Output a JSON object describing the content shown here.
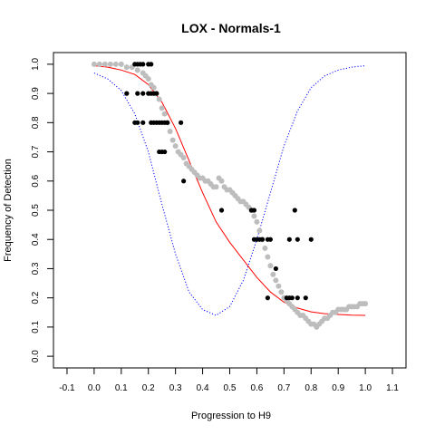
{
  "chart_data": {
    "type": "scatter",
    "title": "LOX - Normals-1",
    "xlabel": "Progression to H9",
    "ylabel": "Frequency of Detection",
    "xlim": [
      -0.15,
      1.15
    ],
    "ylim": [
      -0.04,
      1.04
    ],
    "x_ticks": [
      "-0.1",
      "0.0",
      "0.1",
      "0.2",
      "0.3",
      "0.4",
      "0.5",
      "0.6",
      "0.7",
      "0.8",
      "0.9",
      "1.0",
      "1.1"
    ],
    "y_ticks": [
      "0.0",
      "0.1",
      "0.2",
      "0.3",
      "0.4",
      "0.5",
      "0.6",
      "0.7",
      "0.8",
      "0.9",
      "1.0"
    ],
    "colors": {
      "gray_points": "#bdbdbd",
      "black_points": "#000000",
      "red_curve": "#ff0000",
      "blue_curve": "#0000ff",
      "frame": "#000000"
    },
    "series": [
      {
        "kind": "gray-points",
        "x": [
          0.0,
          0.02,
          0.04,
          0.06,
          0.08,
          0.1,
          0.12,
          0.14,
          0.16,
          0.18,
          0.19,
          0.2,
          0.21,
          0.22,
          0.23,
          0.24,
          0.25,
          0.26,
          0.27,
          0.28,
          0.29,
          0.3,
          0.31,
          0.32,
          0.33,
          0.34,
          0.35,
          0.36,
          0.37,
          0.38,
          0.39,
          0.4,
          0.41,
          0.42,
          0.43,
          0.44,
          0.45,
          0.46,
          0.47,
          0.48,
          0.49,
          0.5,
          0.51,
          0.52,
          0.53,
          0.54,
          0.55,
          0.56,
          0.57,
          0.58,
          0.59,
          0.6,
          0.61,
          0.62,
          0.63,
          0.64,
          0.65,
          0.66,
          0.67,
          0.68,
          0.69,
          0.7,
          0.71,
          0.72,
          0.73,
          0.74,
          0.75,
          0.76,
          0.77,
          0.78,
          0.79,
          0.8,
          0.81,
          0.82,
          0.83,
          0.84,
          0.85,
          0.86,
          0.87,
          0.88,
          0.89,
          0.9,
          0.91,
          0.92,
          0.93,
          0.94,
          0.95,
          0.96,
          0.97,
          0.98,
          0.99,
          1.0
        ],
        "y": [
          1.0,
          1.0,
          1.0,
          1.0,
          1.0,
          1.0,
          0.99,
          0.99,
          0.98,
          0.97,
          0.96,
          0.95,
          0.93,
          0.92,
          0.9,
          0.88,
          0.85,
          0.83,
          0.8,
          0.77,
          0.74,
          0.72,
          0.7,
          0.69,
          0.68,
          0.66,
          0.65,
          0.64,
          0.63,
          0.62,
          0.61,
          0.61,
          0.6,
          0.6,
          0.59,
          0.58,
          0.58,
          0.61,
          0.6,
          0.58,
          0.57,
          0.57,
          0.56,
          0.55,
          0.54,
          0.53,
          0.53,
          0.52,
          0.51,
          0.5,
          0.48,
          0.46,
          0.43,
          0.4,
          0.37,
          0.34,
          0.31,
          0.28,
          0.26,
          0.24,
          0.22,
          0.2,
          0.19,
          0.18,
          0.17,
          0.16,
          0.15,
          0.14,
          0.14,
          0.13,
          0.12,
          0.11,
          0.11,
          0.1,
          0.11,
          0.12,
          0.13,
          0.13,
          0.14,
          0.15,
          0.15,
          0.16,
          0.16,
          0.16,
          0.16,
          0.17,
          0.17,
          0.17,
          0.17,
          0.18,
          0.18,
          0.18
        ]
      },
      {
        "kind": "black-points",
        "x": [
          0.15,
          0.16,
          0.17,
          0.18,
          0.2,
          0.21,
          0.16,
          0.18,
          0.2,
          0.21,
          0.22,
          0.23,
          0.12,
          0.15,
          0.16,
          0.18,
          0.21,
          0.22,
          0.23,
          0.24,
          0.25,
          0.26,
          0.27,
          0.32,
          0.24,
          0.25,
          0.26,
          0.33,
          0.47,
          0.58,
          0.59,
          0.59,
          0.6,
          0.61,
          0.62,
          0.64,
          0.65,
          0.72,
          0.74,
          0.75,
          0.8,
          0.67,
          0.64,
          0.71,
          0.72,
          0.73,
          0.75,
          0.78
        ],
        "y": [
          1.0,
          1.0,
          1.0,
          1.0,
          1.0,
          1.0,
          0.9,
          0.9,
          0.9,
          0.9,
          0.9,
          0.9,
          0.9,
          0.8,
          0.8,
          0.8,
          0.8,
          0.8,
          0.8,
          0.8,
          0.8,
          0.8,
          0.8,
          0.8,
          0.7,
          0.7,
          0.7,
          0.6,
          0.5,
          0.5,
          0.5,
          0.4,
          0.4,
          0.4,
          0.4,
          0.4,
          0.4,
          0.4,
          0.5,
          0.4,
          0.4,
          0.3,
          0.2,
          0.2,
          0.2,
          0.2,
          0.2,
          0.2
        ]
      },
      {
        "kind": "red-fit-curve",
        "x": [
          0.0,
          0.05,
          0.1,
          0.15,
          0.2,
          0.25,
          0.3,
          0.35,
          0.4,
          0.45,
          0.5,
          0.55,
          0.6,
          0.65,
          0.7,
          0.75,
          0.8,
          0.85,
          0.9,
          0.95,
          1.0
        ],
        "y": [
          0.995,
          0.99,
          0.98,
          0.965,
          0.93,
          0.87,
          0.78,
          0.67,
          0.56,
          0.46,
          0.39,
          0.33,
          0.27,
          0.22,
          0.185,
          0.165,
          0.152,
          0.146,
          0.143,
          0.141,
          0.14
        ]
      },
      {
        "kind": "blue-dotted-curve",
        "x": [
          0.0,
          0.05,
          0.1,
          0.15,
          0.2,
          0.25,
          0.3,
          0.35,
          0.4,
          0.45,
          0.5,
          0.55,
          0.6,
          0.65,
          0.7,
          0.75,
          0.8,
          0.85,
          0.9,
          0.95,
          1.0
        ],
        "y": [
          0.97,
          0.95,
          0.91,
          0.83,
          0.7,
          0.52,
          0.35,
          0.22,
          0.16,
          0.14,
          0.17,
          0.26,
          0.4,
          0.56,
          0.72,
          0.84,
          0.92,
          0.96,
          0.98,
          0.99,
          0.995
        ]
      }
    ]
  }
}
